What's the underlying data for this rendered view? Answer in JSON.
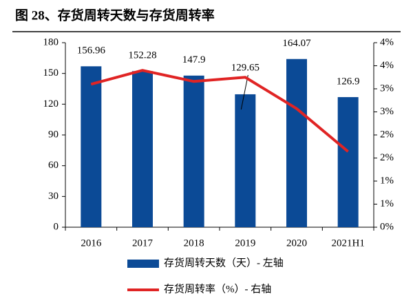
{
  "chart_data": {
    "type": "bar",
    "title": "图 28、存货周转天数与存货周转率",
    "categories": [
      "2016",
      "2017",
      "2018",
      "2019",
      "2020",
      "2021H1"
    ],
    "series": [
      {
        "name": "存货周转天数（天）- 左轴",
        "type": "bar",
        "color": "#0b4a96",
        "values": [
          156.96,
          152.28,
          147.9,
          129.65,
          164.07,
          126.9
        ]
      },
      {
        "name": "存货周转率（%）- 右轴",
        "type": "line",
        "axis": "y2",
        "color": "#e02424",
        "values": [
          3.1,
          3.4,
          3.16,
          3.25,
          2.57,
          1.64
        ]
      }
    ],
    "ylim": [
      0,
      180
    ],
    "yticks": [
      0,
      30,
      60,
      90,
      120,
      150,
      180
    ],
    "y2lim": [
      0,
      4
    ],
    "y2ticks": [
      {
        "value": 0,
        "label": "0%"
      },
      {
        "value": 0.5,
        "label": "1%"
      },
      {
        "value": 1,
        "label": "1%"
      },
      {
        "value": 1.5,
        "label": "2%"
      },
      {
        "value": 2,
        "label": "2%"
      },
      {
        "value": 2.5,
        "label": "3%"
      },
      {
        "value": 3,
        "label": "3%"
      },
      {
        "value": 3.5,
        "label": "4%"
      },
      {
        "value": 4,
        "label": "4%"
      }
    ],
    "value_labels_series": 0,
    "grid": false
  }
}
